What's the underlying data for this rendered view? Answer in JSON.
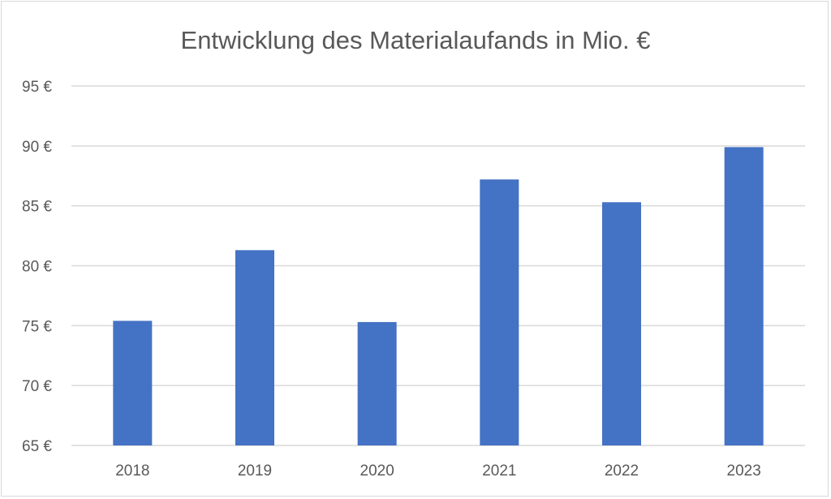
{
  "chart_data": {
    "type": "bar",
    "title": "Entwicklung des Materialaufands in Mio. €",
    "xlabel": "",
    "ylabel": "",
    "categories": [
      "2018",
      "2019",
      "2020",
      "2021",
      "2022",
      "2023"
    ],
    "values": [
      75.4,
      81.3,
      75.3,
      87.2,
      85.3,
      89.9
    ],
    "ylim": [
      65,
      95
    ],
    "yticks": [
      65,
      70,
      75,
      80,
      85,
      90,
      95
    ],
    "ytick_labels": [
      "65 €",
      "70 €",
      "75 €",
      "80 €",
      "85 €",
      "90 €",
      "95 €"
    ],
    "grid": true,
    "legend": "none",
    "colors": {
      "bar": "#4472C4",
      "grid": "#d9d9d9",
      "text": "#595959"
    }
  }
}
